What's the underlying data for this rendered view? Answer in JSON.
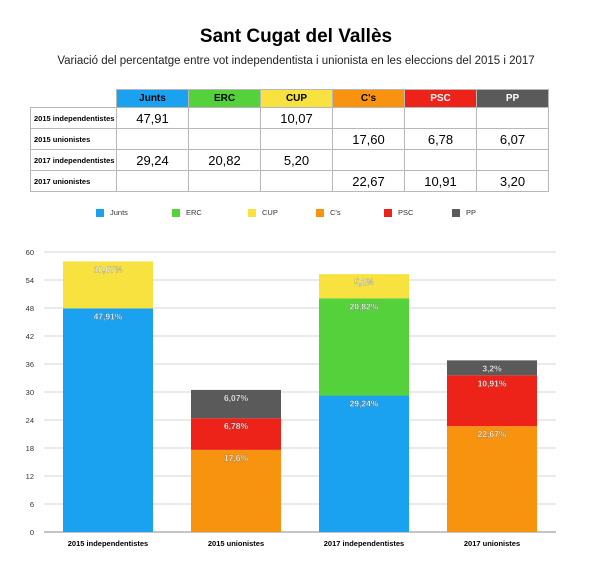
{
  "title": "Sant Cugat del Vallès",
  "subtitle": "Variació del percentatge entre vot independentista i unionista en les eleccions del 2015 i 2017",
  "table": {
    "columns": [
      {
        "name": "Junts",
        "color": "#1aa1f0",
        "text_color": "#000000"
      },
      {
        "name": "ERC",
        "color": "#55d13c",
        "text_color": "#000000"
      },
      {
        "name": "CUP",
        "color": "#f7e240",
        "text_color": "#000000"
      },
      {
        "name": "C's",
        "color": "#f7930f",
        "text_color": "#000000"
      },
      {
        "name": "PSC",
        "color": "#ed2219",
        "text_color": "#ffffff"
      },
      {
        "name": "PP",
        "color": "#5a5a5a",
        "text_color": "#ffffff"
      }
    ],
    "rows": [
      {
        "label": "2015 independentistes",
        "cells": [
          "47,91",
          "",
          "10,07",
          "",
          "",
          ""
        ]
      },
      {
        "label": "2015 unionistes",
        "cells": [
          "",
          "",
          "",
          "17,60",
          "6,78",
          "6,07"
        ]
      },
      {
        "label": "2017 independentistes",
        "cells": [
          "29,24",
          "20,82",
          "5,20",
          "",
          "",
          ""
        ]
      },
      {
        "label": "2017 unionistes",
        "cells": [
          "",
          "",
          "",
          "22,67",
          "10,91",
          "3,20"
        ]
      }
    ]
  },
  "legend": [
    {
      "name": "Junts",
      "color": "#1aa1f0"
    },
    {
      "name": "ERC",
      "color": "#55d13c"
    },
    {
      "name": "CUP",
      "color": "#f7e240"
    },
    {
      "name": "C's",
      "color": "#f7930f"
    },
    {
      "name": "PSC",
      "color": "#ed2219"
    },
    {
      "name": "PP",
      "color": "#5a5a5a"
    }
  ],
  "chart_data": {
    "type": "bar",
    "stacked": true,
    "categories": [
      "2015 independentistes",
      "2015 unionistes",
      "2017 independentistes",
      "2017 unionistes"
    ],
    "series": [
      {
        "name": "Junts",
        "color": "#1aa1f0",
        "values": [
          47.91,
          0,
          29.24,
          0
        ],
        "labels": [
          "47,91%",
          "",
          "29,24%",
          ""
        ]
      },
      {
        "name": "ERC",
        "color": "#55d13c",
        "values": [
          0,
          0,
          20.82,
          0
        ],
        "labels": [
          "",
          "",
          "20,82%",
          ""
        ]
      },
      {
        "name": "CUP",
        "color": "#f7e240",
        "values": [
          10.07,
          0,
          5.2,
          0
        ],
        "labels": [
          "10,07%",
          "",
          "5,2%",
          ""
        ]
      },
      {
        "name": "C's",
        "color": "#f7930f",
        "values": [
          0,
          17.6,
          0,
          22.67
        ],
        "labels": [
          "",
          "17,6%",
          "",
          "22,67%"
        ]
      },
      {
        "name": "PSC",
        "color": "#ed2219",
        "values": [
          0,
          6.78,
          0,
          10.91
        ],
        "labels": [
          "",
          "6,78%",
          "",
          "10,91%"
        ]
      },
      {
        "name": "PP",
        "color": "#5a5a5a",
        "values": [
          0,
          6.07,
          0,
          3.2
        ],
        "labels": [
          "",
          "6,07%",
          "",
          "3,2%"
        ]
      }
    ],
    "ylim": [
      0,
      60
    ],
    "yticks": [
      0,
      6,
      12,
      18,
      24,
      30,
      36,
      42,
      48,
      54,
      60
    ],
    "grid": true,
    "legend_position": "top",
    "xlabel": "",
    "ylabel": ""
  }
}
